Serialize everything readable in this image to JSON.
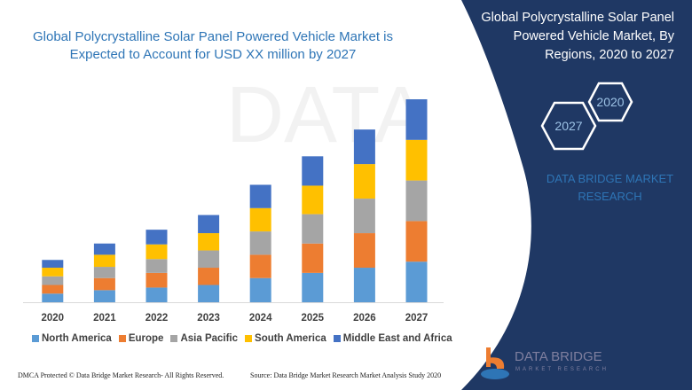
{
  "header": {
    "title": "Global Polycrystalline Solar Panel Powered Vehicle Market is Expected to Account for USD XX million by 2027"
  },
  "side_panel": {
    "title": "Global Polycrystalline Solar Panel Powered Vehicle Market, By Regions, 2020 to 2027",
    "hex_start": "2020",
    "hex_end": "2027",
    "brand": "DATA BRIDGE MARKET RESEARCH",
    "logo_text": "DATA BRIDGE",
    "logo_sub": "MARKET RESEARCH",
    "panel_color": "#1f3864"
  },
  "footer": {
    "left": "DMCA Protected © Data Bridge Market Research- All Rights Reserved.",
    "right": "Source: Data Bridge Market Research Market Analysis Study 2020"
  },
  "chart_data": {
    "type": "bar",
    "stacked": true,
    "title": "",
    "xlabel": "",
    "ylabel": "",
    "ylim": [
      0,
      25
    ],
    "grid": false,
    "legend_position": "bottom",
    "categories": [
      "2020",
      "2021",
      "2022",
      "2023",
      "2024",
      "2025",
      "2026",
      "2027"
    ],
    "series": [
      {
        "name": "North America",
        "color": "#5b9bd5",
        "values": [
          1.0,
          1.4,
          1.7,
          2.0,
          2.8,
          3.4,
          4.0,
          4.7
        ]
      },
      {
        "name": "Europe",
        "color": "#ed7d31",
        "values": [
          1.0,
          1.4,
          1.7,
          2.0,
          2.7,
          3.4,
          4.0,
          4.7
        ]
      },
      {
        "name": "Asia Pacific",
        "color": "#a5a5a5",
        "values": [
          1.0,
          1.3,
          1.6,
          2.0,
          2.7,
          3.4,
          4.0,
          4.7
        ]
      },
      {
        "name": "South America",
        "color": "#ffc000",
        "values": [
          1.0,
          1.4,
          1.7,
          2.0,
          2.7,
          3.3,
          4.0,
          4.7
        ]
      },
      {
        "name": "Middle East and Africa",
        "color": "#4472c4",
        "values": [
          0.9,
          1.3,
          1.7,
          2.1,
          2.7,
          3.4,
          4.0,
          4.7
        ]
      }
    ]
  }
}
